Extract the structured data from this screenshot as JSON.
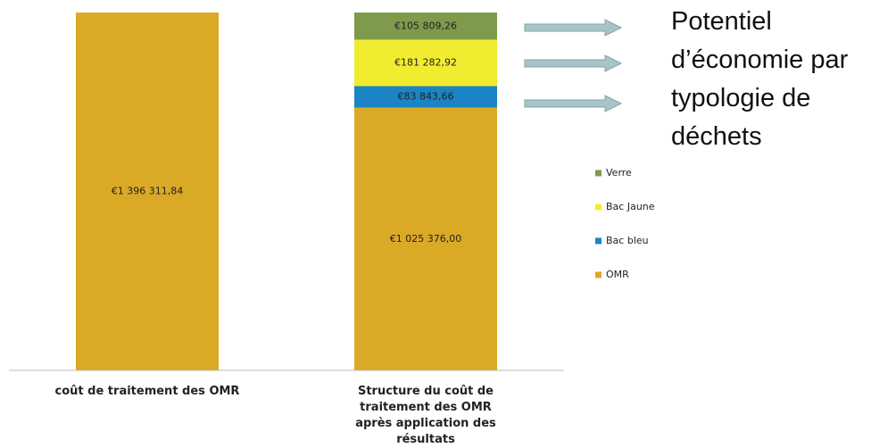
{
  "chart_data": {
    "type": "stacked_bar",
    "categories": [
      "coût de traitement des OMR",
      "Structure du coût de traitement des OMR après application des résultats"
    ],
    "series": [
      {
        "name": "OMR",
        "color": "#daa926",
        "values": [
          1396311.84,
          1025376.0
        ],
        "value_labels": [
          "€1 396 311,84",
          "€1 025 376,00"
        ]
      },
      {
        "name": "Bac bleu",
        "color": "#1b84c5",
        "values": [
          null,
          83843.66
        ],
        "value_labels": [
          null,
          "€83 843,66"
        ]
      },
      {
        "name": "Bac Jaune",
        "color": "#f2ec30",
        "values": [
          null,
          181282.92
        ],
        "value_labels": [
          null,
          "€181 282,92"
        ]
      },
      {
        "name": "Verre",
        "color": "#7e9a4b",
        "values": [
          null,
          105809.26
        ],
        "value_labels": [
          null,
          "€105 809,26"
        ]
      }
    ],
    "ylim": [
      0,
      1400000
    ],
    "annotation": "Potentiel d’économie par typologie de déchets"
  }
}
